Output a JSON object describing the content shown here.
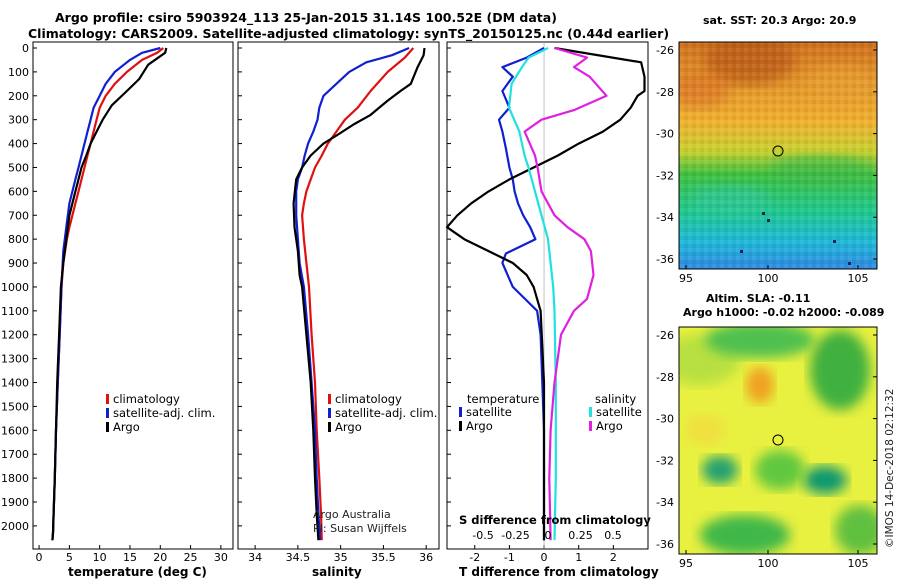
{
  "header": {
    "line1": "Argo profile: csiro 5903924_113 25-Jan-2015 31.14S 100.52E (DM data)",
    "line2": "Climatology: CARS2009. Satellite-adjusted climatology: synTS_20150125.nc (0.44d earlier)"
  },
  "depth_ticks": [
    "0",
    "100",
    "200",
    "300",
    "400",
    "500",
    "600",
    "700",
    "800",
    "900",
    "1000",
    "1100",
    "1200",
    "1300",
    "1400",
    "1500",
    "1600",
    "1700",
    "1800",
    "1900",
    "2000"
  ],
  "colors": {
    "climatology": "#e01010",
    "satellite": "#1020d0",
    "argo": "#000000",
    "cyan": "#20e0e0",
    "magenta": "#e020e0"
  },
  "chart_data": [
    {
      "type": "line",
      "id": "temperature",
      "xlabel": "temperature (deg C)",
      "xlim": [
        -1,
        32
      ],
      "ylim": [
        0,
        2080
      ],
      "xticks": [
        0,
        5,
        10,
        15,
        20,
        25,
        30
      ],
      "legend": [
        "climatology",
        "satellite-adj. clim.",
        "Argo"
      ],
      "series": [
        {
          "name": "climatology",
          "color": "#e01010",
          "x": [
            20.5,
            19.5,
            17,
            14.5,
            12.5,
            11,
            10,
            9.5,
            9,
            8.5,
            8,
            7.5,
            7,
            6.5,
            6,
            5.5,
            5,
            4.6,
            4.3,
            4,
            3.7,
            3.4,
            3.1,
            2.8,
            2.6,
            2.4,
            2.3,
            2.2
          ],
          "y": [
            0,
            20,
            50,
            100,
            150,
            200,
            250,
            300,
            350,
            400,
            450,
            500,
            550,
            600,
            650,
            700,
            750,
            800,
            850,
            900,
            1000,
            1200,
            1400,
            1600,
            1800,
            1950,
            2030,
            2060
          ]
        },
        {
          "name": "satellite-adj. clim.",
          "color": "#1020d0",
          "x": [
            20,
            17,
            15,
            12.5,
            11,
            10,
            9,
            8.5,
            8,
            7.5,
            7,
            6.5,
            6,
            5.5,
            5,
            4.5,
            4,
            3.7,
            3.4,
            3.1,
            2.8,
            2.6,
            2.4,
            2.3,
            2.2
          ],
          "y": [
            0,
            20,
            50,
            100,
            150,
            200,
            250,
            300,
            350,
            400,
            450,
            500,
            550,
            600,
            650,
            750,
            850,
            1000,
            1200,
            1400,
            1600,
            1800,
            1950,
            2030,
            2060
          ]
        },
        {
          "name": "Argo",
          "color": "#000000",
          "x": [
            21,
            20.8,
            18,
            16.5,
            14.5,
            12,
            10.5,
            9.5,
            8.5,
            7.8,
            7,
            6.5,
            6,
            5.5,
            5,
            4.5,
            4,
            3.6,
            3.3,
            3,
            2.8,
            2.6,
            2.4,
            2.3,
            2.2
          ],
          "y": [
            0,
            20,
            70,
            130,
            180,
            240,
            300,
            350,
            400,
            450,
            500,
            550,
            600,
            650,
            700,
            800,
            900,
            1000,
            1200,
            1400,
            1600,
            1800,
            1950,
            2030,
            2060
          ]
        }
      ]
    },
    {
      "type": "line",
      "id": "salinity",
      "xlabel": "salinity",
      "xlim": [
        33.8,
        36.15
      ],
      "ylim": [
        0,
        2080
      ],
      "xticks": [
        34,
        34.5,
        35,
        35.5,
        36
      ],
      "xticklabels": [
        "34",
        "34.5",
        "35",
        "35.5",
        "36"
      ],
      "legend": [
        "climatology",
        "satellite-adj. clim.",
        "Argo"
      ],
      "annotation": [
        "Argo Australia",
        "PI: Susan Wijffels"
      ],
      "series": [
        {
          "name": "climatology",
          "color": "#e01010",
          "x": [
            35.85,
            35.75,
            35.55,
            35.35,
            35.2,
            35.05,
            34.95,
            34.85,
            34.78,
            34.7,
            34.65,
            34.6,
            34.57,
            34.55,
            34.57,
            34.6,
            34.63,
            34.66,
            34.7,
            34.72,
            34.75,
            34.77,
            34.78
          ],
          "y": [
            0,
            40,
            100,
            180,
            250,
            300,
            350,
            400,
            450,
            500,
            550,
            600,
            650,
            700,
            800,
            900,
            1000,
            1200,
            1400,
            1600,
            1800,
            1950,
            2060
          ]
        },
        {
          "name": "satellite-adj. clim.",
          "color": "#1020d0",
          "x": [
            35.8,
            35.6,
            35.3,
            35.1,
            34.95,
            34.8,
            34.75,
            34.73,
            34.68,
            34.62,
            34.58,
            34.55,
            34.5,
            34.48,
            34.48,
            34.5,
            34.52,
            34.57,
            34.62,
            34.66,
            34.7,
            34.72,
            34.74,
            34.76
          ],
          "y": [
            0,
            30,
            60,
            100,
            150,
            200,
            250,
            300,
            350,
            400,
            450,
            500,
            550,
            600,
            700,
            800,
            900,
            1000,
            1200,
            1400,
            1600,
            1800,
            1950,
            2060
          ]
        },
        {
          "name": "Argo",
          "color": "#000000",
          "x": [
            35.98,
            35.97,
            35.9,
            35.82,
            35.7,
            35.55,
            35.35,
            35.15,
            34.98,
            34.8,
            34.65,
            34.55,
            34.48,
            34.45,
            34.46,
            34.5,
            34.52,
            34.55,
            34.6,
            34.65,
            34.68,
            34.7,
            34.72,
            34.74
          ],
          "y": [
            0,
            30,
            80,
            150,
            180,
            220,
            280,
            320,
            360,
            400,
            450,
            500,
            550,
            650,
            750,
            850,
            950,
            1000,
            1200,
            1400,
            1600,
            1800,
            1950,
            2060
          ]
        }
      ]
    },
    {
      "type": "line",
      "id": "difference",
      "xlabel": "T difference from climatology",
      "xlabel_top": "S difference from climatology",
      "xlim": [
        -2.8,
        3.0
      ],
      "ylim": [
        0,
        2080
      ],
      "xticks": [
        -2,
        -1,
        0,
        1,
        2
      ],
      "xticklabels": [
        "-2",
        "-1",
        "0",
        "1",
        "2"
      ],
      "sticks": [
        -0.5,
        -0.25,
        0,
        0.25,
        0.5
      ],
      "sticklabels": [
        "-0.5",
        "-0.25",
        "0",
        "0.25",
        "0.5"
      ],
      "legend_temp_title": "temperature",
      "legend_sal_title": "salinity",
      "legend": [
        "satellite",
        "Argo",
        "satellite",
        "Argo"
      ],
      "series": [
        {
          "name": "T satellite",
          "color": "#1020d0",
          "x": [
            0,
            -0.5,
            -1.2,
            -0.9,
            -1.2,
            -1,
            -1.3,
            -1.2,
            -1.1,
            -1,
            -0.9,
            -0.85,
            -0.75,
            -0.6,
            -0.4,
            -0.25,
            -1.1,
            -1.2,
            -0.9,
            -0.55,
            -0.2,
            -0.1,
            -0.05,
            0,
            0,
            0
          ],
          "y": [
            0,
            40,
            80,
            120,
            180,
            250,
            300,
            350,
            420,
            500,
            550,
            600,
            650,
            700,
            750,
            800,
            860,
            900,
            1000,
            1050,
            1100,
            1200,
            1400,
            1600,
            1800,
            2060
          ]
        },
        {
          "name": "T Argo",
          "color": "#000000",
          "x": [
            0.3,
            2.8,
            2.9,
            2.9,
            2.7,
            2.5,
            2.2,
            1.7,
            1,
            0.4,
            -0.3,
            -1,
            -1.6,
            -2.1,
            -2.5,
            -2.8,
            -2.3,
            -1.6,
            -0.9,
            -0.5,
            -0.3,
            -0.2,
            -0.1,
            0,
            0,
            0
          ],
          "y": [
            0,
            60,
            120,
            180,
            200,
            250,
            300,
            350,
            400,
            450,
            500,
            550,
            600,
            650,
            700,
            750,
            800,
            850,
            900,
            950,
            1000,
            1050,
            1100,
            1400,
            1800,
            2060
          ]
        },
        {
          "name": "S satellite",
          "color": "#20e0e0",
          "x": [
            0,
            -0.15,
            -0.2,
            -0.28,
            -0.3,
            -0.26,
            -0.22,
            -0.2,
            -0.18,
            -0.15,
            -0.1,
            -0.05,
            0,
            0.02,
            0.04,
            0.05,
            0.06,
            0.06,
            0.06,
            0.05
          ],
          "y": [
            0,
            40,
            80,
            150,
            250,
            300,
            350,
            400,
            450,
            500,
            600,
            700,
            800,
            900,
            1000,
            1100,
            1400,
            1600,
            1800,
            2060
          ]
        },
        {
          "name": "S Argo",
          "color": "#e020e0",
          "x": [
            0.05,
            0.3,
            0.2,
            0.32,
            0.45,
            0.2,
            -0.05,
            -0.18,
            -0.14,
            -0.1,
            -0.08,
            -0.05,
            0.05,
            0.15,
            0.28,
            0.33,
            0.35,
            0.3,
            0.2,
            0.1,
            0.05,
            0.02,
            0.01,
            0.02
          ],
          "y": [
            0,
            40,
            80,
            120,
            200,
            260,
            300,
            350,
            400,
            450,
            500,
            600,
            700,
            750,
            800,
            850,
            950,
            1050,
            1100,
            1200,
            1400,
            1600,
            1800,
            2060
          ]
        }
      ]
    },
    {
      "type": "heatmap",
      "id": "sst_map",
      "title": "sat. SST: 20.3 Argo: 20.9",
      "xticks": [
        95,
        100,
        105
      ],
      "yticks": [
        -26,
        -28,
        -30,
        -32,
        -34,
        -36
      ],
      "marker": [
        100.5,
        -31.1
      ]
    },
    {
      "type": "heatmap",
      "id": "sla_map",
      "title1": "Altim. SLA: -0.11",
      "title2": "Argo h1000: -0.02 h2000: -0.089",
      "xticks": [
        95,
        100,
        105
      ],
      "yticks": [
        -26,
        -28,
        -30,
        -32,
        -34,
        -36
      ],
      "marker": [
        100.5,
        -31.1
      ]
    }
  ],
  "credit": "©IMOS 14-Dec-2018 02:12:32"
}
